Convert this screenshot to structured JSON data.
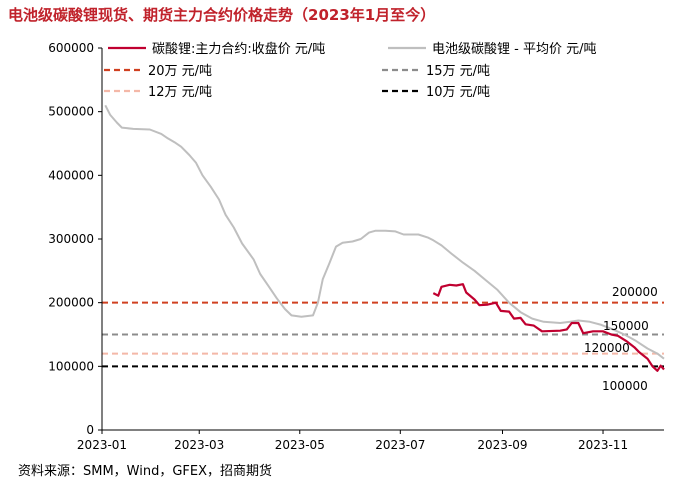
{
  "title": "电池级碳酸锂现货、期货主力合约价格走势（2023年1月至今）",
  "source": "资料来源：SMM，Wind，GFEX，招商期货",
  "chart_data": {
    "type": "line",
    "title": "电池级碳酸锂现货、期货主力合约价格走势（2023年1月至今）",
    "xlabel": "",
    "ylabel": "",
    "x_range": [
      "2023-01-01",
      "2023-12-08"
    ],
    "x_ticks": [
      "2023-01",
      "2023-03",
      "2023-05",
      "2023-07",
      "2023-09",
      "2023-11"
    ],
    "y_ticks": [
      0,
      100000,
      200000,
      300000,
      400000,
      500000,
      600000
    ],
    "ylim": [
      0,
      600000
    ],
    "grid": false,
    "legend_position": "top",
    "series": [
      {
        "name": "碳酸锂:主力合约:收盘价 元/吨",
        "color": "#c00030",
        "style": "solid",
        "points": [
          [
            "2023-07-21",
            215000
          ],
          [
            "2023-07-24",
            211000
          ],
          [
            "2023-07-26",
            225000
          ],
          [
            "2023-07-31",
            228000
          ],
          [
            "2023-08-04",
            227000
          ],
          [
            "2023-08-08",
            229000
          ],
          [
            "2023-08-10",
            216000
          ],
          [
            "2023-08-15",
            205000
          ],
          [
            "2023-08-18",
            196000
          ],
          [
            "2023-08-23",
            197000
          ],
          [
            "2023-08-28",
            200000
          ],
          [
            "2023-08-31",
            187000
          ],
          [
            "2023-09-05",
            186000
          ],
          [
            "2023-09-08",
            175000
          ],
          [
            "2023-09-12",
            176000
          ],
          [
            "2023-09-15",
            166000
          ],
          [
            "2023-09-20",
            164000
          ],
          [
            "2023-09-25",
            155000
          ],
          [
            "2023-10-06",
            156000
          ],
          [
            "2023-10-10",
            158000
          ],
          [
            "2023-10-13",
            168000
          ],
          [
            "2023-10-17",
            168000
          ],
          [
            "2023-10-20",
            152000
          ],
          [
            "2023-10-26",
            155000
          ],
          [
            "2023-11-01",
            155000
          ],
          [
            "2023-11-06",
            150000
          ],
          [
            "2023-11-10",
            148000
          ],
          [
            "2023-11-15",
            140000
          ],
          [
            "2023-11-20",
            130000
          ],
          [
            "2023-11-23",
            122000
          ],
          [
            "2023-11-28",
            112000
          ],
          [
            "2023-12-01",
            100000
          ],
          [
            "2023-12-04",
            93000
          ],
          [
            "2023-12-06",
            101000
          ],
          [
            "2023-12-08",
            95000
          ]
        ]
      },
      {
        "name": "电池级碳酸锂 - 平均价 元/吨",
        "color": "#bfbfbf",
        "style": "solid",
        "points": [
          [
            "2023-01-03",
            510000
          ],
          [
            "2023-01-06",
            495000
          ],
          [
            "2023-01-10",
            483000
          ],
          [
            "2023-01-13",
            475000
          ],
          [
            "2023-01-20",
            473000
          ],
          [
            "2023-01-30",
            472000
          ],
          [
            "2023-02-06",
            465000
          ],
          [
            "2023-02-10",
            458000
          ],
          [
            "2023-02-14",
            452000
          ],
          [
            "2023-02-18",
            445000
          ],
          [
            "2023-02-23",
            432000
          ],
          [
            "2023-02-27",
            420000
          ],
          [
            "2023-03-03",
            400000
          ],
          [
            "2023-03-08",
            382000
          ],
          [
            "2023-03-13",
            362000
          ],
          [
            "2023-03-17",
            338000
          ],
          [
            "2023-03-22",
            318000
          ],
          [
            "2023-03-27",
            293000
          ],
          [
            "2023-04-03",
            268000
          ],
          [
            "2023-04-07",
            245000
          ],
          [
            "2023-04-12",
            226000
          ],
          [
            "2023-04-17",
            207000
          ],
          [
            "2023-04-22",
            190000
          ],
          [
            "2023-04-26",
            180000
          ],
          [
            "2023-05-02",
            178000
          ],
          [
            "2023-05-09",
            180000
          ],
          [
            "2023-05-12",
            200000
          ],
          [
            "2023-05-15",
            237000
          ],
          [
            "2023-05-19",
            262000
          ],
          [
            "2023-05-23",
            288000
          ],
          [
            "2023-05-27",
            294000
          ],
          [
            "2023-06-02",
            296000
          ],
          [
            "2023-06-07",
            300000
          ],
          [
            "2023-06-12",
            310000
          ],
          [
            "2023-06-16",
            313000
          ],
          [
            "2023-06-22",
            313000
          ],
          [
            "2023-06-28",
            312000
          ],
          [
            "2023-07-03",
            307000
          ],
          [
            "2023-07-12",
            307000
          ],
          [
            "2023-07-18",
            302000
          ],
          [
            "2023-07-21",
            298000
          ],
          [
            "2023-07-26",
            290000
          ],
          [
            "2023-08-01",
            277000
          ],
          [
            "2023-08-08",
            263000
          ],
          [
            "2023-08-15",
            250000
          ],
          [
            "2023-08-22",
            235000
          ],
          [
            "2023-08-29",
            220000
          ],
          [
            "2023-09-05",
            200000
          ],
          [
            "2023-09-12",
            185000
          ],
          [
            "2023-09-19",
            175000
          ],
          [
            "2023-09-26",
            170000
          ],
          [
            "2023-10-06",
            168000
          ],
          [
            "2023-10-12",
            170000
          ],
          [
            "2023-10-17",
            172000
          ],
          [
            "2023-10-24",
            170000
          ],
          [
            "2023-10-31",
            165000
          ],
          [
            "2023-11-07",
            158000
          ],
          [
            "2023-11-14",
            150000
          ],
          [
            "2023-11-21",
            140000
          ],
          [
            "2023-11-28",
            128000
          ],
          [
            "2023-12-04",
            120000
          ],
          [
            "2023-12-08",
            112000
          ]
        ]
      }
    ],
    "reference_lines": [
      {
        "name": "20万 元/吨",
        "value": 200000,
        "color": "#d04020",
        "style": "dashed",
        "label": "200000"
      },
      {
        "name": "15万 元/吨",
        "value": 150000,
        "color": "#8c8c8c",
        "style": "dashed",
        "label": "150000"
      },
      {
        "name": "12万 元/吨",
        "value": 120000,
        "color": "#f4b8a8",
        "style": "dashed",
        "label": "120000"
      },
      {
        "name": "10万 元/吨",
        "value": 100000,
        "color": "#000000",
        "style": "dashed",
        "label": "100000"
      }
    ]
  }
}
